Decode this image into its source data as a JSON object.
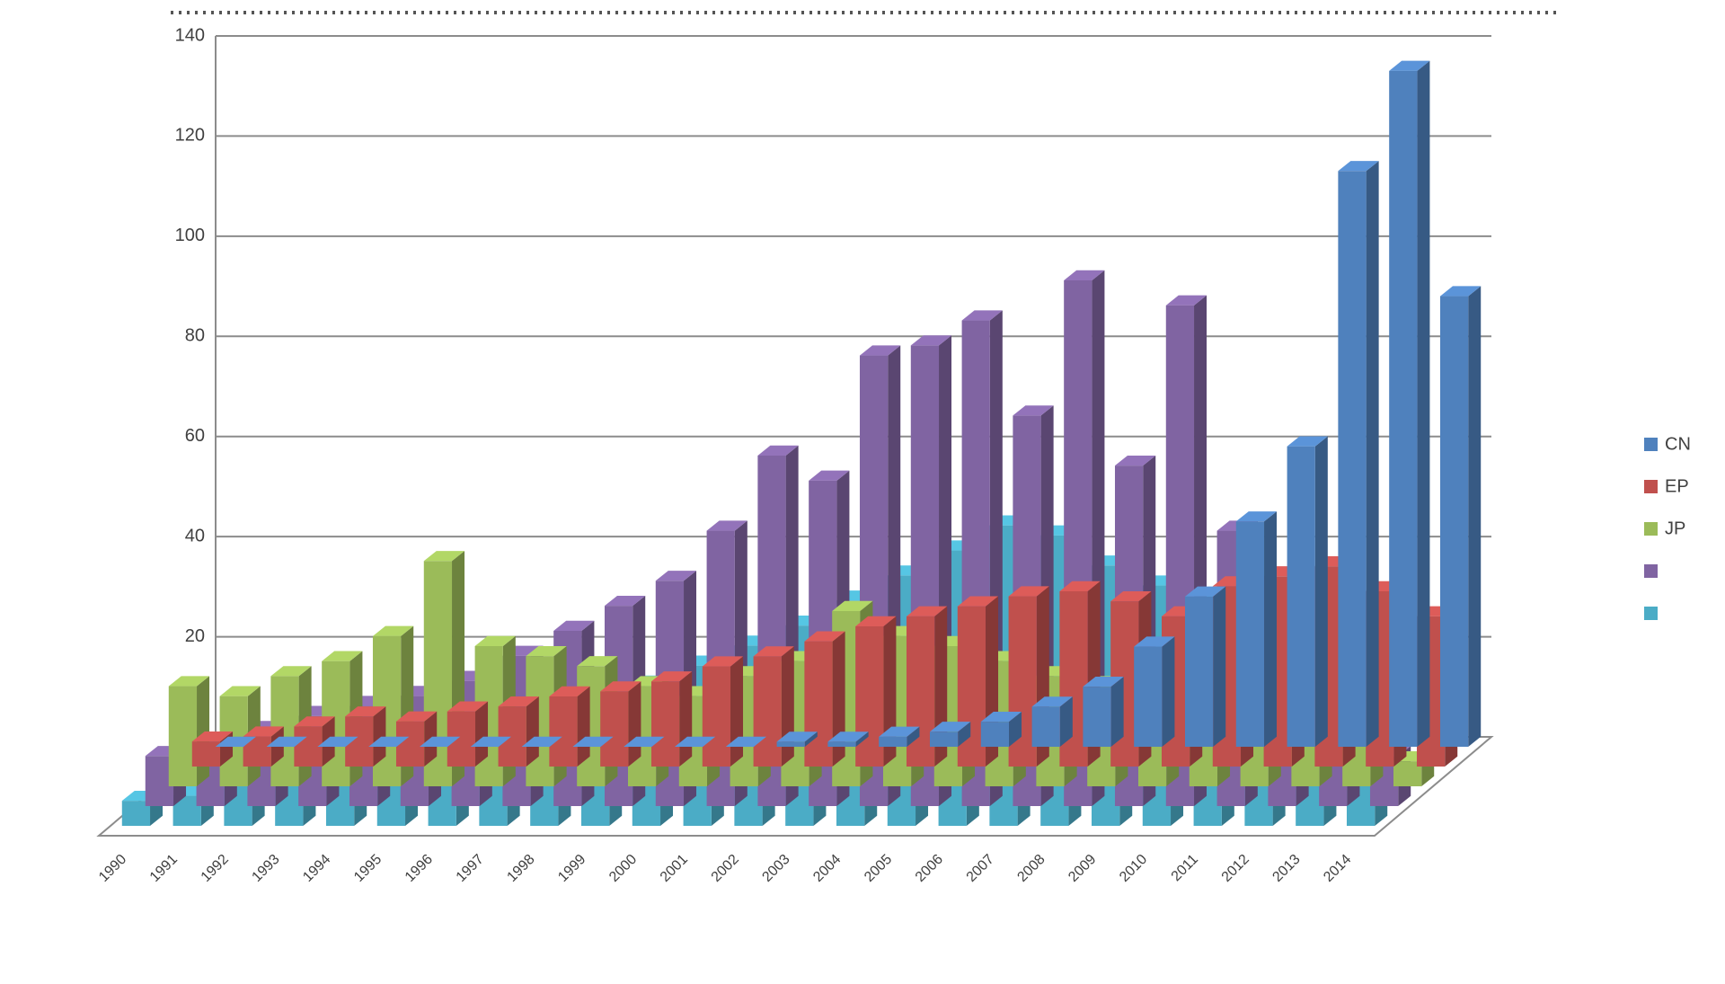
{
  "chart_data": {
    "type": "bar3d",
    "categories": [
      "1990",
      "1991",
      "1992",
      "1993",
      "1994",
      "1995",
      "1996",
      "1997",
      "1998",
      "1999",
      "2000",
      "2001",
      "2002",
      "2003",
      "2004",
      "2005",
      "2006",
      "2007",
      "2008",
      "2009",
      "2010",
      "2011",
      "2012",
      "2013",
      "2014"
    ],
    "series": [
      {
        "name": "CN",
        "color": "#4f81bd",
        "values": [
          0,
          0,
          0,
          0,
          0,
          0,
          0,
          0,
          0,
          0,
          0,
          1,
          1,
          2,
          3,
          5,
          8,
          12,
          20,
          30,
          45,
          60,
          115,
          135,
          90
        ]
      },
      {
        "name": "EP",
        "color": "#c0504d",
        "values": [
          5,
          6,
          8,
          10,
          9,
          11,
          12,
          14,
          15,
          17,
          20,
          22,
          25,
          28,
          30,
          32,
          34,
          35,
          33,
          30,
          36,
          38,
          40,
          35,
          30
        ]
      },
      {
        "name": "JP",
        "color": "#9bbb59",
        "values": [
          20,
          18,
          22,
          25,
          30,
          45,
          28,
          26,
          24,
          20,
          18,
          22,
          25,
          35,
          30,
          28,
          25,
          22,
          20,
          18,
          15,
          12,
          10,
          8,
          5
        ]
      },
      {
        "color": "#8064a2",
        "values": [
          10,
          12,
          15,
          18,
          20,
          22,
          25,
          30,
          35,
          40,
          45,
          55,
          70,
          65,
          90,
          92,
          97,
          78,
          105,
          68,
          100,
          55,
          40,
          20,
          10
        ]
      },
      {
        "color": "#4bacc6",
        "values": [
          5,
          6,
          8,
          10,
          12,
          15,
          18,
          20,
          22,
          25,
          28,
          32,
          36,
          40,
          45,
          50,
          55,
          60,
          58,
          52,
          48,
          45,
          40,
          35,
          10
        ]
      }
    ],
    "ylim": [
      0,
      140
    ],
    "yticks": [
      0,
      20,
      40,
      60,
      80,
      100,
      120,
      140
    ],
    "grid": true,
    "legend": "right"
  }
}
